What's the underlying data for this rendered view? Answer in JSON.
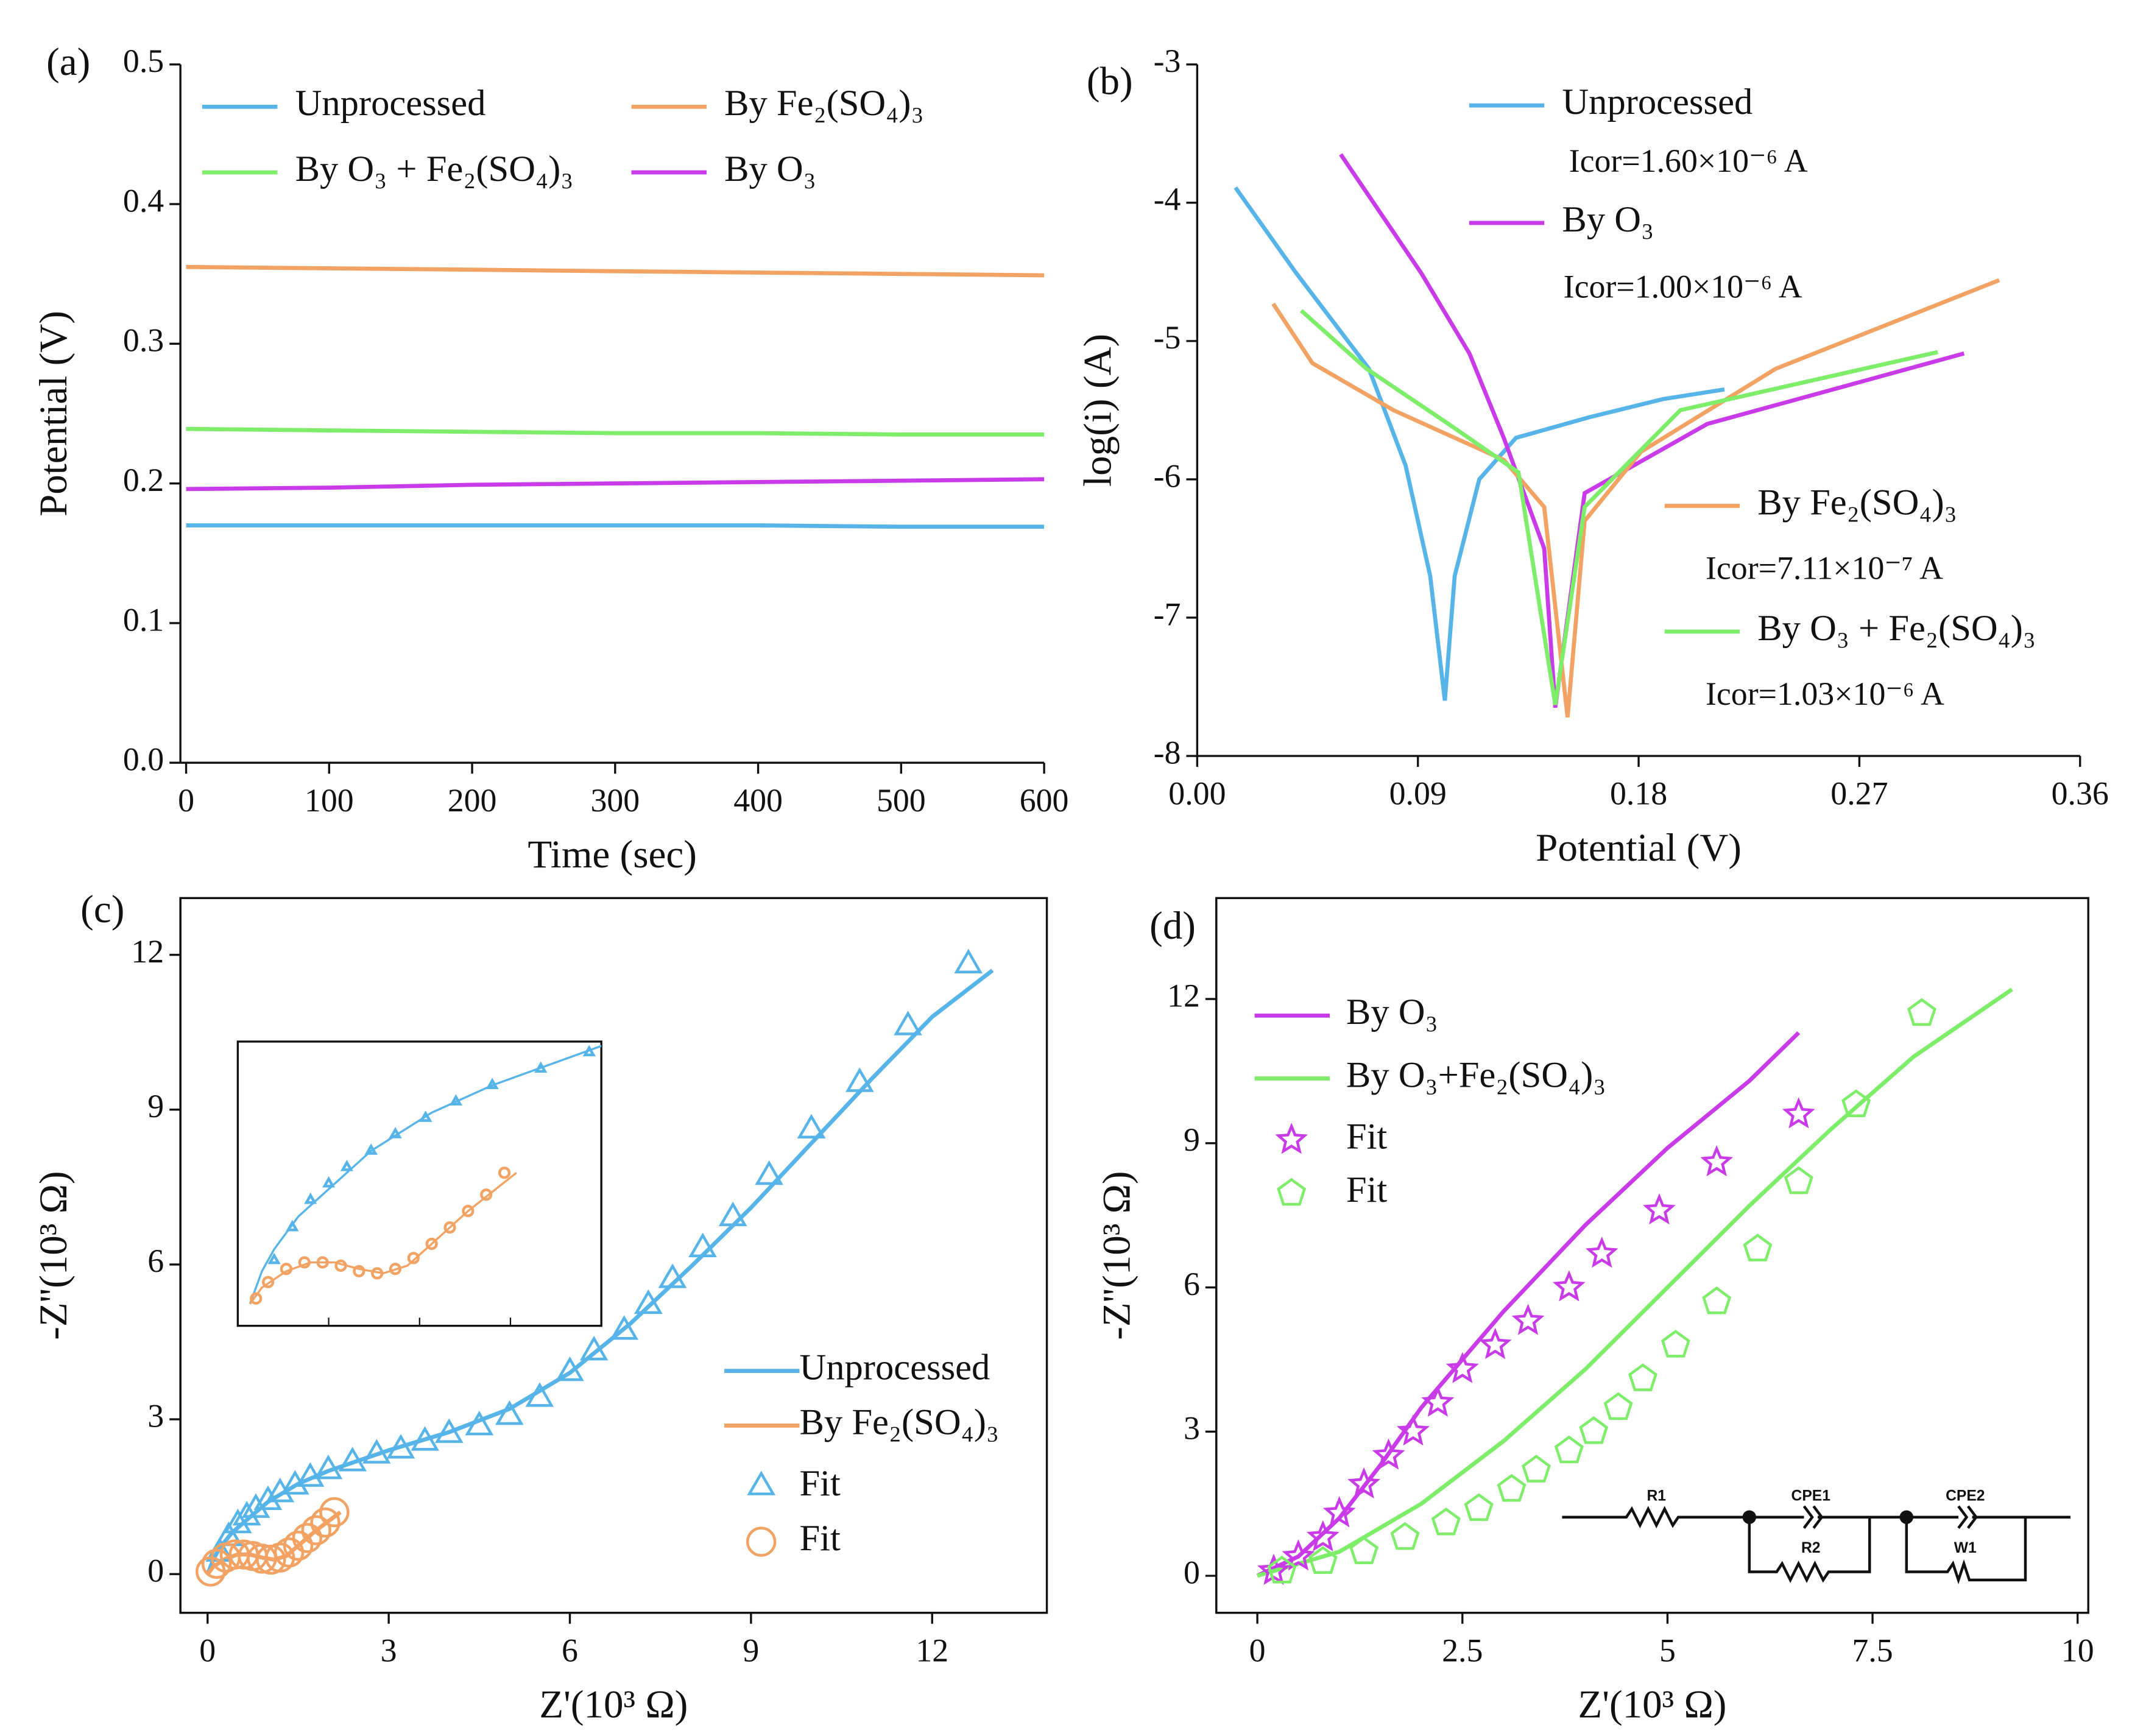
{
  "chart_data": [
    {
      "type": "line",
      "panel": "(a)",
      "x_label": "Time (sec)",
      "y_label": "Potential (V)",
      "xlim": [
        -4,
        600
      ],
      "ylim": [
        0,
        0.5
      ],
      "xticks": [
        0,
        100,
        200,
        300,
        400,
        500,
        600
      ],
      "yticks": [
        {
          "value": 0,
          "label": "0.0"
        },
        0.1,
        0.2,
        0.3,
        0.4,
        0.5
      ],
      "x": [
        0,
        100,
        200,
        300,
        400,
        500,
        600
      ],
      "series": [
        {
          "name": "Unprocessed",
          "color": "#56b4e9",
          "values": [
            0.17,
            0.17,
            0.17,
            0.17,
            0.17,
            0.169,
            0.169
          ]
        },
        {
          "name": "By Fe₂(SO₄)₃",
          "color": "#f2a263",
          "values": [
            0.355,
            0.354,
            0.353,
            0.352,
            0.351,
            0.35,
            0.349
          ]
        },
        {
          "name": "By O₃ + Fe₂(SO₄)₃",
          "color": "#7ded6a",
          "values": [
            0.239,
            0.238,
            0.237,
            0.236,
            0.236,
            0.235,
            0.235
          ]
        },
        {
          "name": "By O₃",
          "color": "#c93be8",
          "values": [
            0.196,
            0.197,
            0.199,
            0.2,
            0.201,
            0.202,
            0.203
          ]
        }
      ]
    },
    {
      "type": "line",
      "panel": "(b)",
      "x_label": "Potential (V)",
      "y_label": "log(i) (A)",
      "xlim": [
        0,
        0.36
      ],
      "ylim": [
        -8,
        -3
      ],
      "xticks": [
        {
          "value": 0,
          "label": "0.00"
        },
        0.09,
        0.18,
        0.27,
        0.36
      ],
      "yticks": [
        -8,
        -7,
        -6,
        -5,
        -4,
        -3
      ],
      "series": [
        {
          "name": "Unprocessed",
          "color": "#56b4e9",
          "annotation": "Icor=1.60×10⁻⁶ A",
          "x": [
            0.0156,
            0.04,
            0.07,
            0.085,
            0.095,
            0.101,
            0.105,
            0.115,
            0.13,
            0.16,
            0.19,
            0.215
          ],
          "values": [
            -3.89,
            -4.5,
            -5.2,
            -5.9,
            -6.7,
            -7.6,
            -6.7,
            -6.0,
            -5.7,
            -5.55,
            -5.42,
            -5.35
          ]
        },
        {
          "name": "By O₃",
          "color": "#c93be8",
          "annotation": "Icor=1.00×10⁻⁶ A",
          "x": [
            0.0585,
            0.0914,
            0.111,
            0.125,
            0.1415,
            0.146,
            0.158,
            0.208,
            0.3127
          ],
          "values": [
            -3.65,
            -4.51,
            -5.09,
            -5.7,
            -6.5,
            -7.65,
            -6.1,
            -5.6,
            -5.09
          ]
        },
        {
          "name": "By Fe₂(SO₄)₃",
          "color": "#f2a263",
          "annotation": "Icor=7.11×10⁻⁷ A",
          "x": [
            0.031,
            0.047,
            0.08,
            0.125,
            0.1415,
            0.151,
            0.158,
            0.181,
            0.236,
            0.327
          ],
          "values": [
            -4.73,
            -5.16,
            -5.5,
            -5.86,
            -6.2,
            -7.72,
            -6.3,
            -5.8,
            -5.2,
            -4.56
          ]
        },
        {
          "name": "By O₃ + Fe₂(SO₄)₃",
          "color": "#7ded6a",
          "annotation": "Icor=1.03×10⁻⁶ A",
          "x": [
            0.0424,
            0.069,
            0.1025,
            0.131,
            0.146,
            0.158,
            0.197,
            0.302
          ],
          "values": [
            -4.78,
            -5.2,
            -5.6,
            -5.95,
            -7.63,
            -6.2,
            -5.5,
            -5.08
          ]
        }
      ]
    },
    {
      "type": "line",
      "panel": "(c)",
      "x_label": "Z'(10³ Ω)",
      "y_label": "-Z''(10³ Ω)",
      "xlim": [
        -0.45,
        13.9
      ],
      "ylim": [
        -0.75,
        13.1
      ],
      "xticks": [
        0,
        3,
        6,
        9,
        12
      ],
      "yticks": [
        0,
        3,
        6,
        9,
        12
      ],
      "inset": {
        "xlim": [
          -0.1,
          2.9
        ],
        "ylim": [
          -0.2,
          2.4
        ]
      },
      "series": [
        {
          "name": "Unprocessed",
          "color": "#56b4e9",
          "x": [
            0,
            0.1,
            0.2,
            0.4,
            0.7,
            1,
            1.5,
            2,
            3,
            4,
            5,
            6,
            7,
            8,
            9,
            10,
            11,
            12,
            13
          ],
          "values": [
            0,
            0.3,
            0.5,
            0.8,
            1.1,
            1.4,
            1.75,
            2.0,
            2.4,
            2.75,
            3.2,
            3.9,
            4.85,
            5.95,
            7.1,
            8.35,
            9.6,
            10.8,
            11.7
          ]
        },
        {
          "name": "By Fe₂(SO₄)₃",
          "color": "#f2a263",
          "x": [
            0,
            0.1,
            0.3,
            0.5,
            0.7,
            0.9,
            1.1,
            1.3,
            1.5,
            1.8,
            2.2
          ],
          "values": [
            0,
            0.15,
            0.3,
            0.38,
            0.38,
            0.32,
            0.28,
            0.35,
            0.55,
            0.85,
            1.2
          ]
        },
        {
          "name": "Fit",
          "color": "#56b4e9",
          "marker": "triangle",
          "x": [
            0.2,
            0.35,
            0.5,
            0.65,
            0.8,
            1,
            1.2,
            1.45,
            1.7,
            2,
            2.4,
            2.8,
            3.2,
            3.6,
            4,
            4.5,
            5,
            5.5,
            6,
            6.4,
            6.9,
            7.3,
            7.7,
            8.2,
            8.7,
            9.3,
            10,
            10.8,
            11.6,
            12.6
          ],
          "values": [
            0.4,
            0.7,
            0.95,
            1.1,
            1.25,
            1.4,
            1.55,
            1.7,
            1.85,
            2.0,
            2.15,
            2.3,
            2.4,
            2.55,
            2.7,
            2.85,
            3.05,
            3.4,
            3.9,
            4.3,
            4.7,
            5.2,
            5.7,
            6.3,
            6.9,
            7.7,
            8.6,
            9.5,
            10.6,
            11.8
          ]
        },
        {
          "name": "Fit",
          "color": "#f2a263",
          "marker": "circle",
          "x": [
            0.05,
            0.15,
            0.3,
            0.45,
            0.6,
            0.75,
            0.9,
            1.05,
            1.2,
            1.35,
            1.5,
            1.65,
            1.8,
            1.95,
            2.1
          ],
          "values": [
            0.05,
            0.2,
            0.32,
            0.38,
            0.38,
            0.35,
            0.3,
            0.28,
            0.32,
            0.42,
            0.55,
            0.7,
            0.85,
            1.0,
            1.2
          ]
        }
      ]
    },
    {
      "type": "line",
      "panel": "(d)",
      "x_label": "Z'(10³ Ω)",
      "y_label": "-Z''(10³ Ω)",
      "xlim": [
        -0.5,
        10.13
      ],
      "ylim": [
        -0.77,
        14.1
      ],
      "xticks": [
        0,
        2.5,
        5,
        7.5,
        10
      ],
      "yticks": [
        0,
        3,
        6,
        9,
        12
      ],
      "circuit": [
        "R1",
        "CPE1",
        "R2",
        "CPE2",
        "W1"
      ],
      "series": [
        {
          "name": "By O₃",
          "color": "#c93be8",
          "x": [
            0,
            0.5,
            1,
            1.5,
            2,
            3,
            4,
            5,
            6,
            6.6
          ],
          "values": [
            0,
            0.4,
            1.2,
            2.3,
            3.5,
            5.5,
            7.3,
            8.9,
            10.3,
            11.3
          ]
        },
        {
          "name": "By O₃+Fe₂(SO₄)₃",
          "color": "#7ded6a",
          "x": [
            0,
            1,
            2,
            3,
            4,
            5,
            6,
            7,
            8,
            9.2
          ],
          "values": [
            0,
            0.5,
            1.5,
            2.8,
            4.3,
            6.0,
            7.7,
            9.3,
            10.8,
            12.2
          ]
        },
        {
          "name": "Fit",
          "color": "#c93be8",
          "marker": "star",
          "x": [
            0.2,
            0.5,
            0.8,
            1,
            1.3,
            1.6,
            1.9,
            2.2,
            2.5,
            2.9,
            3.3,
            3.8,
            4.2,
            4.9,
            5.6,
            6.6
          ],
          "values": [
            0.1,
            0.4,
            0.8,
            1.3,
            1.9,
            2.5,
            3.0,
            3.6,
            4.3,
            4.8,
            5.3,
            6.0,
            6.7,
            7.6,
            8.6,
            9.6
          ]
        },
        {
          "name": "Fit",
          "color": "#7ded6a",
          "marker": "pentagon",
          "x": [
            0.3,
            0.8,
            1.3,
            1.8,
            2.3,
            2.7,
            3.1,
            3.4,
            3.8,
            4.1,
            4.4,
            4.7,
            5.1,
            5.6,
            6.1,
            6.6,
            7.3,
            8.1
          ],
          "values": [
            0.1,
            0.3,
            0.5,
            0.8,
            1.1,
            1.4,
            1.8,
            2.2,
            2.6,
            3.0,
            3.5,
            4.1,
            4.8,
            5.7,
            6.8,
            8.2,
            9.8,
            11.7
          ]
        }
      ]
    }
  ]
}
